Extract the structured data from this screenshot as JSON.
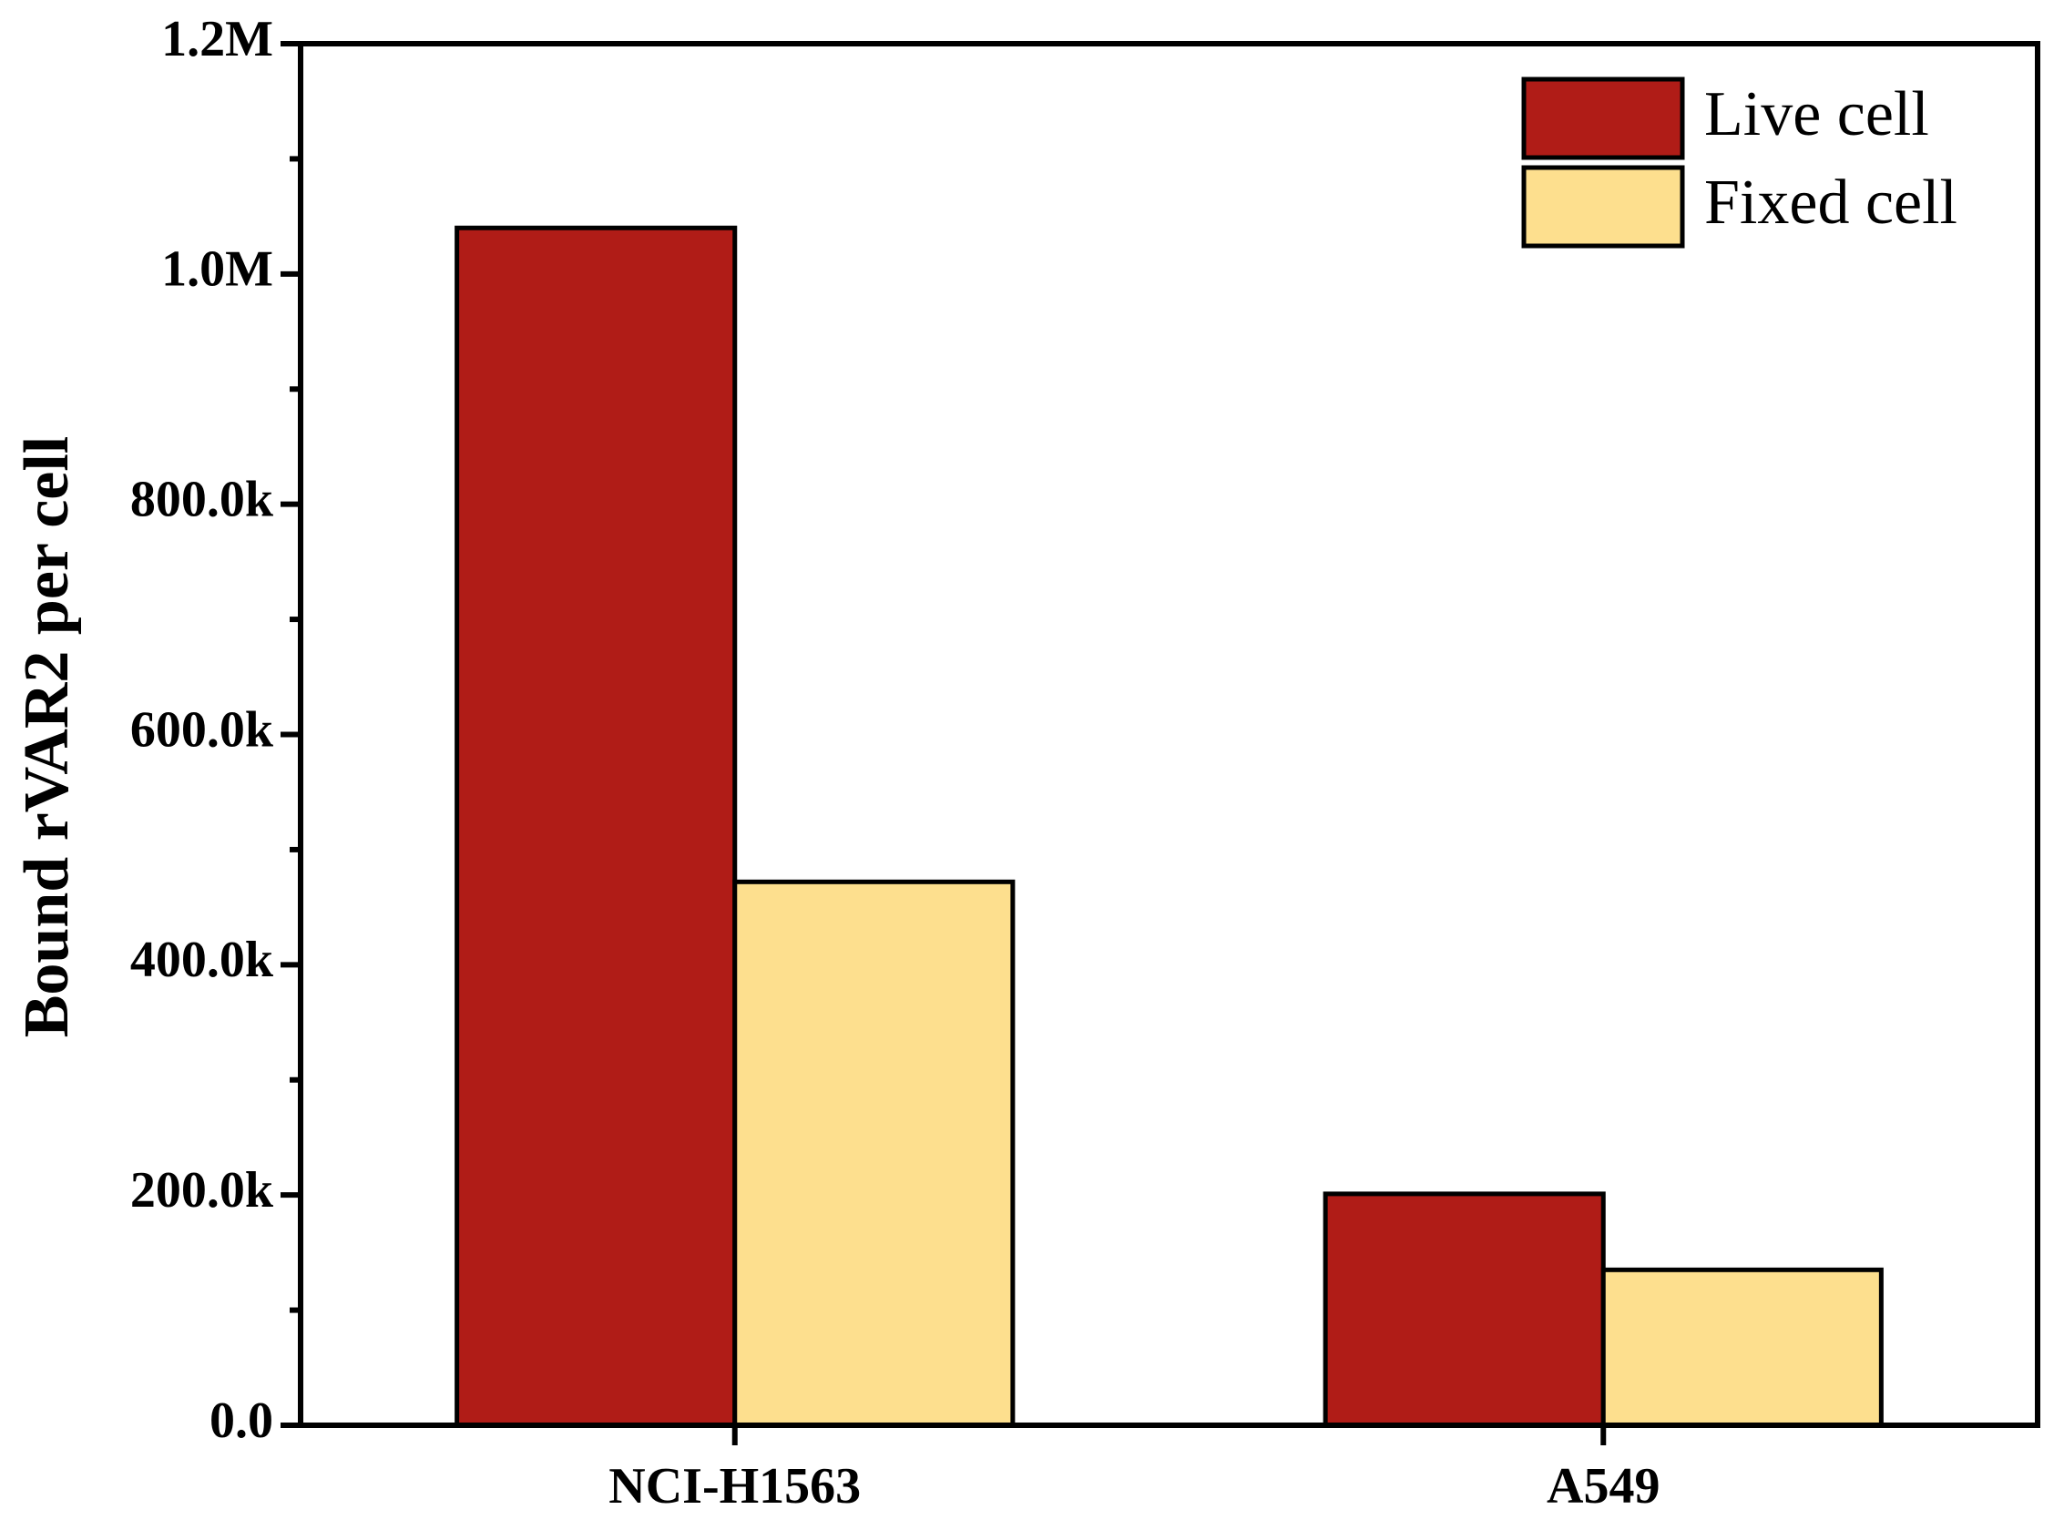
{
  "chart_data": {
    "type": "bar",
    "y_label": "Bound rVAR2 per cell",
    "categories": [
      "NCI-H1563",
      "A549"
    ],
    "series": [
      {
        "name": "Live cell",
        "color": "#b01c17",
        "values": [
          1040000,
          201000
        ]
      },
      {
        "name": "Fixed cell",
        "color": "#fddf8e",
        "values": [
          472000,
          135000
        ]
      }
    ],
    "ylim": [
      0,
      1200000
    ],
    "yticks": [
      {
        "value": 0,
        "label": "0.0"
      },
      {
        "value": 200000,
        "label": "200.0k"
      },
      {
        "value": 400000,
        "label": "400.0k"
      },
      {
        "value": 600000,
        "label": "600.0k"
      },
      {
        "value": 800000,
        "label": "800.0k"
      },
      {
        "value": 1000000,
        "label": "1.0M"
      },
      {
        "value": 1200000,
        "label": "1.2M"
      }
    ],
    "legend": "top-right",
    "grid": false
  }
}
